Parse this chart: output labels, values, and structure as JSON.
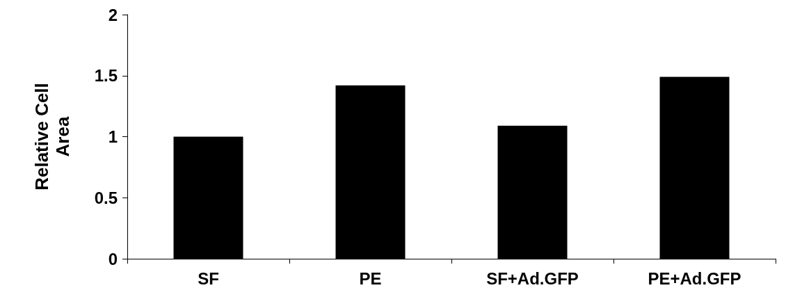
{
  "chart_data": {
    "type": "bar",
    "categories": [
      "SF",
      "PE",
      "SF+Ad.GFP",
      "PE+Ad.GFP"
    ],
    "values": [
      1.0,
      1.42,
      1.09,
      1.49
    ],
    "color": "#000000",
    "ylabel": "Relative Cell Area",
    "ylim": [
      0,
      2
    ],
    "yticks": [
      0,
      0.5,
      1,
      1.5,
      2
    ],
    "grid": false
  }
}
